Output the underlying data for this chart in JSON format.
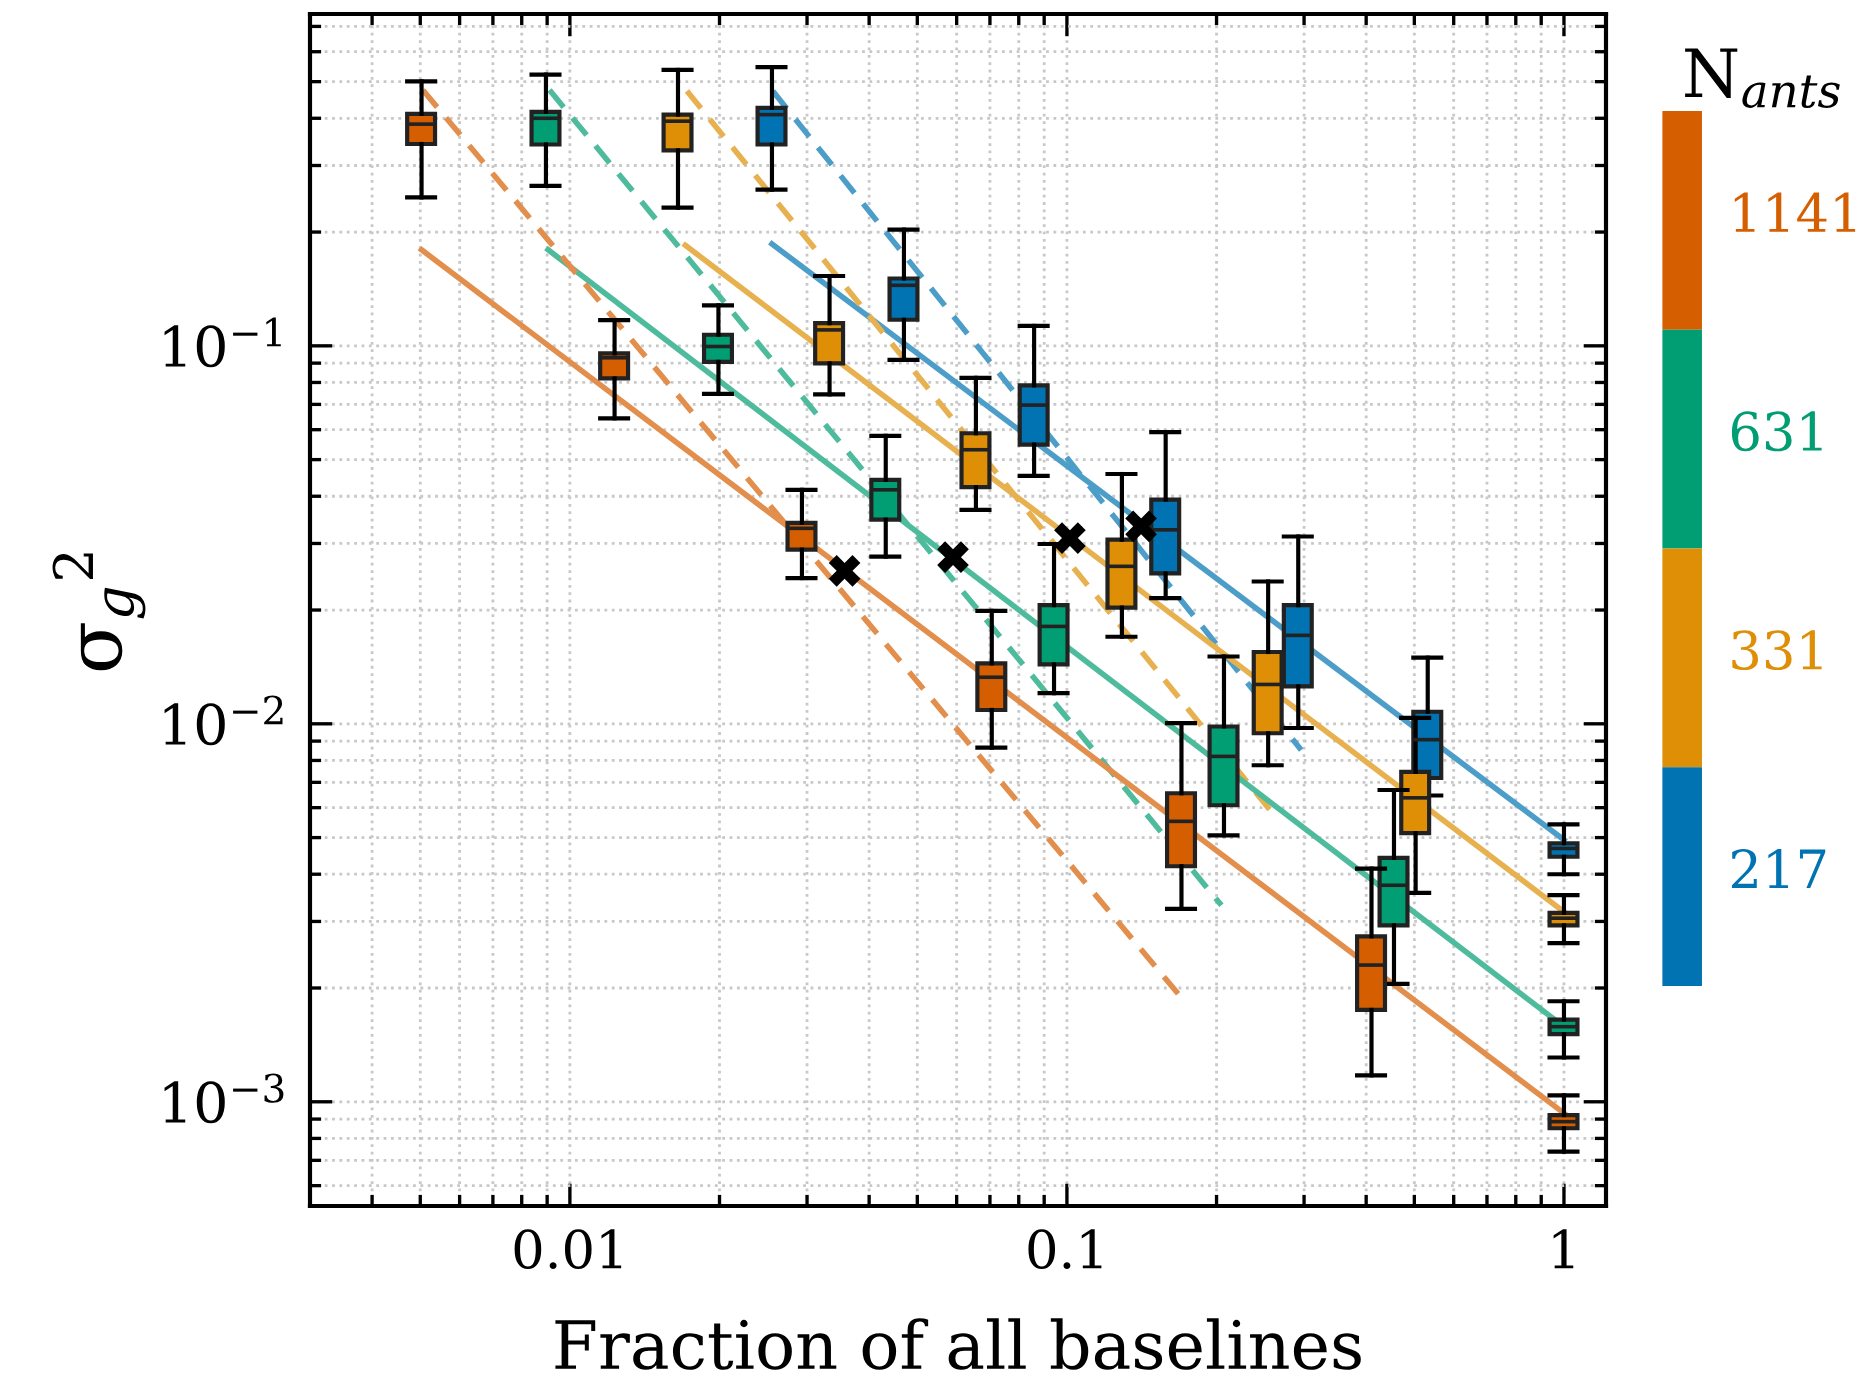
{
  "chart_data": {
    "type": "box",
    "xlabel": "Fraction of all baselines",
    "ylabel": "σ$_{g}$$^{2}$",
    "legend_title": "N$_{ants}$",
    "log": "xy",
    "xlim": [
      0.003,
      1.215
    ],
    "ylim": [
      0.00053,
      0.755
    ],
    "xticks": [
      0.01,
      0.1,
      1
    ],
    "yticks": [
      {
        "value": 0.001,
        "label": "10$^{−3}$"
      },
      {
        "value": 0.01,
        "label": "10$^{−2}$"
      },
      {
        "value": 0.1,
        "label": "10$^{−1}$"
      }
    ],
    "grid": true,
    "legend": "right",
    "series": [
      {
        "name": "217",
        "color": "#0173b2",
        "x": [
          0.0255,
          0.047,
          0.0859,
          0.158,
          0.292,
          0.532,
          1
        ],
        "boxes": [
          {
            "low": 0.259,
            "q1": 0.341,
            "median": 0.409,
            "q3": 0.426,
            "high": 0.546
          },
          {
            "low": 0.0918,
            "q1": 0.1172,
            "median": 0.1446,
            "q3": 0.1507,
            "high": 0.203
          },
          {
            "low": 0.0453,
            "q1": 0.0548,
            "median": 0.0697,
            "q3": 0.0786,
            "high": 0.1129
          },
          {
            "low": 0.0215,
            "q1": 0.025,
            "median": 0.0326,
            "q3": 0.0392,
            "high": 0.0591
          },
          {
            "low": 0.00975,
            "q1": 0.01256,
            "median": 0.01714,
            "q3": 0.0206,
            "high": 0.0313
          },
          {
            "low": 0.00646,
            "q1": 0.00719,
            "median": 0.00908,
            "q3": 0.01076,
            "high": 0.01496
          },
          {
            "low": 0.004,
            "q1": 0.00445,
            "median": 0.00468,
            "q3": 0.00483,
            "high": 0.00542
          }
        ]
      },
      {
        "name": "331",
        "color": "#de8f05",
        "x": [
          0.0165,
          0.0333,
          0.0656,
          0.129,
          0.254,
          0.503,
          1
        ],
        "boxes": [
          {
            "low": 0.232,
            "q1": 0.329,
            "median": 0.393,
            "q3": 0.409,
            "high": 0.537
          },
          {
            "low": 0.0744,
            "q1": 0.0899,
            "median": 0.1102,
            "q3": 0.1148,
            "high": 0.153
          },
          {
            "low": 0.0368,
            "q1": 0.0423,
            "median": 0.0531,
            "q3": 0.0587,
            "high": 0.0823
          },
          {
            "low": 0.017,
            "q1": 0.0203,
            "median": 0.0261,
            "q3": 0.0307,
            "high": 0.0458
          },
          {
            "low": 0.00777,
            "q1": 0.00944,
            "median": 0.01271,
            "q3": 0.01549,
            "high": 0.0238
          },
          {
            "low": 0.00357,
            "q1": 0.00514,
            "median": 0.00637,
            "q3": 0.00746,
            "high": 0.01037
          },
          {
            "low": 0.00263,
            "q1": 0.00293,
            "median": 0.00306,
            "q3": 0.00316,
            "high": 0.00352
          }
        ]
      },
      {
        "name": "631",
        "color": "#029e73",
        "x": [
          0.00895,
          0.0199,
          0.0432,
          0.0942,
          0.207,
          0.455,
          1
        ],
        "boxes": [
          {
            "low": 0.265,
            "q1": 0.341,
            "median": 0.4,
            "q3": 0.416,
            "high": 0.522
          },
          {
            "low": 0.0746,
            "q1": 0.0907,
            "median": 0.0996,
            "q3": 0.107,
            "high": 0.128
          },
          {
            "low": 0.0277,
            "q1": 0.0347,
            "median": 0.0416,
            "q3": 0.0442,
            "high": 0.0578
          },
          {
            "low": 0.01205,
            "q1": 0.01436,
            "median": 0.0181,
            "q3": 0.0206,
            "high": 0.0299
          },
          {
            "low": 0.00507,
            "q1": 0.00609,
            "median": 0.0082,
            "q3": 0.00984,
            "high": 0.01507
          },
          {
            "low": 0.00205,
            "q1": 0.00293,
            "median": 0.00374,
            "q3": 0.00442,
            "high": 0.00668
          },
          {
            "low": 0.00131,
            "q1": 0.00151,
            "median": 0.00158,
            "q3": 0.00165,
            "high": 0.001845
          }
        ]
      },
      {
        "name": "1141",
        "color": "#d55e00",
        "x": [
          0.00503,
          0.0123,
          0.0293,
          0.0706,
          0.17,
          0.41,
          1
        ],
        "boxes": [
          {
            "low": 0.247,
            "q1": 0.342,
            "median": 0.386,
            "q3": 0.411,
            "high": 0.501
          },
          {
            "low": 0.0643,
            "q1": 0.082,
            "median": 0.093,
            "q3": 0.0955,
            "high": 0.117
          },
          {
            "low": 0.0243,
            "q1": 0.0289,
            "median": 0.0329,
            "q3": 0.034,
            "high": 0.0416
          },
          {
            "low": 0.00865,
            "q1": 0.01088,
            "median": 0.01328,
            "q3": 0.01445,
            "high": 0.0199
          },
          {
            "low": 0.00324,
            "q1": 0.0042,
            "median": 0.00552,
            "q3": 0.00655,
            "high": 0.01004
          },
          {
            "low": 0.001175,
            "q1": 0.00175,
            "median": 0.0023,
            "q3": 0.00274,
            "high": 0.00414
          },
          {
            "low": 0.000738,
            "q1": 0.000851,
            "median": 0.000886,
            "q3": 0.000922,
            "high": 0.00104
          }
        ]
      },
      {
        "type": "line",
        "color": "#4d9dc9",
        "line_style": "solid",
        "x": [
          0.0255,
          1
        ],
        "values": [
          0.186,
          0.00493
        ]
      },
      {
        "type": "line",
        "color": "#4d9dc9",
        "line_style": "dashed",
        "x": [
          0.0256,
          0.296
        ],
        "values": [
          0.472,
          0.00853
        ]
      },
      {
        "type": "line",
        "color": "#e8b150",
        "line_style": "solid",
        "x": [
          0.01707,
          1
        ],
        "values": [
          0.1845,
          0.00318
        ]
      },
      {
        "type": "line",
        "color": "#e8b150",
        "line_style": "dashed",
        "x": [
          0.0172,
          0.256
        ],
        "values": [
          0.472,
          0.00592
        ]
      },
      {
        "type": "line",
        "color": "#4ebb9d",
        "line_style": "solid",
        "x": [
          0.00904,
          1
        ],
        "values": [
          0.1795,
          0.00158
        ]
      },
      {
        "type": "line",
        "color": "#4ebb9d",
        "line_style": "dashed",
        "x": [
          0.0091,
          0.2046
        ],
        "values": [
          0.475,
          0.00331
        ]
      },
      {
        "type": "line",
        "color": "#e28e4c",
        "line_style": "solid",
        "x": [
          0.00503,
          1
        ],
        "values": [
          0.1795,
          0.000933
        ]
      },
      {
        "type": "line",
        "color": "#e28e4c",
        "line_style": "dashed",
        "x": [
          0.00506,
          0.1714
        ],
        "values": [
          0.475,
          0.00186
        ]
      },
      {
        "type": "scatter",
        "color": "#000000",
        "marker": "cross",
        "x": [
          0.0357,
          0.059,
          0.1014,
          0.141
        ],
        "values": [
          0.0254,
          0.0276,
          0.031,
          0.0333
        ]
      }
    ]
  }
}
